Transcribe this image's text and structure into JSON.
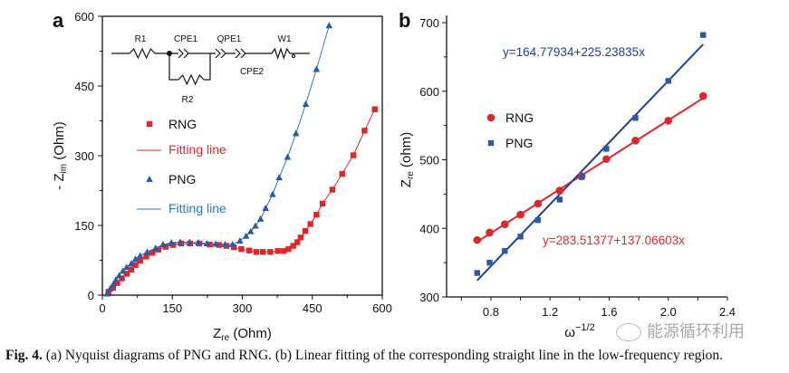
{
  "caption": {
    "label": "Fig. 4.",
    "text": " (a) Nyquist diagrams of PNG and RNG. (b) Linear fitting of the corresponding straight line in the low-frequency region."
  },
  "watermark": {
    "text": "能源循环利用",
    "icon": "wechat-icon"
  },
  "colors": {
    "rng": "#e0252b",
    "png": "#2a5aa8",
    "png_fit_b": "#1f3f9a",
    "axis": "#111111"
  },
  "chart_data": [
    {
      "panel_label": "a",
      "type": "scatter",
      "xlabel": "Z",
      "xlabel_sub": "re",
      "xlabel_unit": " (Ohm)",
      "ylabel": "- Z",
      "ylabel_sub": "im",
      "ylabel_unit": " (Ohm)",
      "xlim": [
        0,
        600
      ],
      "ylim": [
        0,
        600
      ],
      "xticks": [
        "0",
        "150",
        "300",
        "450",
        "600"
      ],
      "yticks": [
        "0",
        "150",
        "300",
        "450",
        "600"
      ],
      "legend": [
        {
          "label": "RNG",
          "marker": "square",
          "color": "#e0252b"
        },
        {
          "label": "Fitting line",
          "marker": "line",
          "color": "#e0252b"
        },
        {
          "label": "PNG",
          "marker": "triangle",
          "color": "#2a5aa8"
        },
        {
          "label": "Fitting line",
          "marker": "line",
          "color": "#2a7ab8"
        }
      ],
      "circuit_labels": {
        "r1": "R1",
        "cpe1": "CPE1",
        "qpe1": "QPE1",
        "w1": "W1",
        "r2": "R2",
        "cpe2": "CPE2"
      },
      "series": [
        {
          "name": "RNG",
          "marker": "square",
          "color": "#e0252b",
          "x": [
            13,
            23,
            32,
            42,
            52,
            62,
            71,
            81,
            94,
            107,
            120,
            136,
            152,
            169,
            188,
            208,
            230,
            250,
            266,
            282,
            298,
            315,
            330,
            344,
            360,
            376,
            389,
            399,
            409,
            418,
            425,
            435,
            446,
            459,
            472,
            493,
            514,
            538,
            562,
            584
          ],
          "y": [
            7,
            16,
            26,
            36,
            46,
            55,
            65,
            74,
            83,
            91,
            98,
            104,
            108,
            111,
            111,
            111,
            109,
            108,
            106,
            103,
            99,
            96,
            93,
            93,
            93,
            95,
            95,
            99,
            106,
            114,
            124,
            138,
            153,
            173,
            197,
            227,
            261,
            301,
            354,
            400
          ]
        },
        {
          "name": "PNG",
          "marker": "triangle",
          "color": "#2a5aa8",
          "x": [
            10,
            16,
            23,
            29,
            36,
            44,
            52,
            62,
            71,
            81,
            96,
            114,
            130,
            148,
            167,
            187,
            206,
            224,
            243,
            263,
            279,
            295,
            308,
            318,
            328,
            339,
            350,
            365,
            379,
            397,
            415,
            436,
            459,
            486
          ],
          "y": [
            3,
            13,
            23,
            33,
            42,
            52,
            60,
            68,
            78,
            85,
            93,
            101,
            109,
            113,
            114,
            114,
            113,
            111,
            110,
            109,
            109,
            117,
            127,
            137,
            149,
            164,
            187,
            217,
            253,
            297,
            348,
            411,
            486,
            580
          ]
        }
      ]
    },
    {
      "panel_label": "b",
      "type": "scatter",
      "xlabel": "ω",
      "xlabel_sup": "−1/2",
      "ylabel": "Z",
      "ylabel_sub": "re",
      "ylabel_unit": " (ohm)",
      "xlim": [
        0.5,
        2.4
      ],
      "ylim": [
        300,
        700
      ],
      "xticks": [
        "0.8",
        "1.2",
        "1.6",
        "2.0",
        "2.4"
      ],
      "yticks": [
        "300",
        "400",
        "500",
        "600",
        "700"
      ],
      "legend": [
        {
          "label": "RNG",
          "marker": "circle",
          "color": "#e0252b"
        },
        {
          "label": "PNG",
          "marker": "square",
          "color": "#2a5aa8"
        }
      ],
      "series": [
        {
          "name": "RNG",
          "marker": "circle",
          "color": "#e0252b",
          "x": [
            0.707,
            0.791,
            0.894,
            1.0,
            1.118,
            1.265,
            1.414,
            1.581,
            1.778,
            2.0,
            2.236
          ],
          "y": [
            383,
            394,
            406,
            420,
            436,
            455,
            476,
            501,
            528,
            557,
            593
          ],
          "fit": {
            "intercept": 283.51377,
            "slope": 137.06603,
            "label": "y=283.51377+137.06603x"
          }
        },
        {
          "name": "PNG",
          "marker": "square",
          "color": "#2a5aa8",
          "x": [
            0.707,
            0.791,
            0.894,
            1.0,
            1.118,
            1.265,
            1.414,
            1.581,
            1.778,
            2.0,
            2.236
          ],
          "y": [
            335,
            350,
            367,
            388,
            412,
            442,
            475,
            516,
            561,
            615,
            682
          ],
          "fit": {
            "intercept": 164.77934,
            "slope": 225.23835,
            "label": "y=164.77934+225.23835x"
          }
        }
      ]
    }
  ]
}
